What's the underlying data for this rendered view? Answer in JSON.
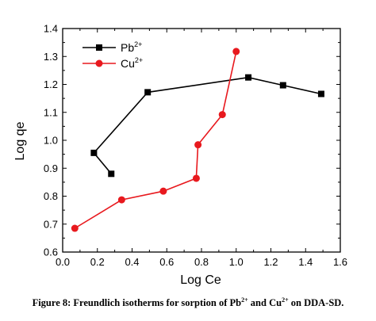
{
  "chart_data": {
    "type": "line",
    "xlabel": "Log Ce",
    "ylabel": "Log qe",
    "xlim": [
      0.0,
      1.6
    ],
    "ylim": [
      0.6,
      1.4
    ],
    "x_ticks": [
      "0.0",
      "0.2",
      "0.4",
      "0.6",
      "0.8",
      "1.0",
      "1.2",
      "1.4",
      "1.6"
    ],
    "y_ticks": [
      "0.6",
      "0.7",
      "0.8",
      "0.9",
      "1.0",
      "1.1",
      "1.2",
      "1.3",
      "1.4"
    ],
    "grid": false,
    "legend_position": "top-left",
    "series": [
      {
        "name": "Pb",
        "name_sup": "2+",
        "color": "#000000",
        "marker": "square",
        "points": [
          {
            "x": 0.28,
            "y": 0.88
          },
          {
            "x": 0.18,
            "y": 0.955
          },
          {
            "x": 0.49,
            "y": 1.172
          },
          {
            "x": 1.07,
            "y": 1.225
          },
          {
            "x": 1.27,
            "y": 1.197
          },
          {
            "x": 1.49,
            "y": 1.166
          }
        ]
      },
      {
        "name": "Cu",
        "name_sup": "2+",
        "color": "#e8191e",
        "marker": "circle",
        "points": [
          {
            "x": 0.07,
            "y": 0.685
          },
          {
            "x": 0.34,
            "y": 0.787
          },
          {
            "x": 0.58,
            "y": 0.818
          },
          {
            "x": 0.77,
            "y": 0.864
          },
          {
            "x": 0.78,
            "y": 0.984
          },
          {
            "x": 0.92,
            "y": 1.092
          },
          {
            "x": 1.0,
            "y": 1.318
          }
        ]
      }
    ]
  },
  "caption": {
    "prefix": "Figure 8: Freundlich isotherms for sorption of Pb",
    "sup1": "2+",
    "middle": " and Cu",
    "sup2": "2+",
    "suffix": " on DDA-SD."
  }
}
